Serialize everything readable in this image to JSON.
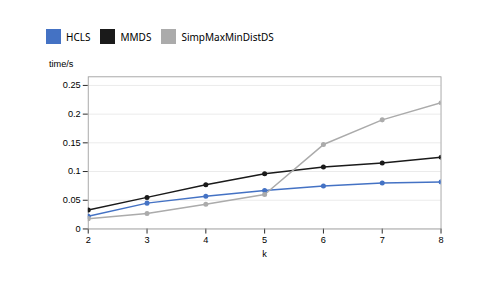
{
  "chart_data": {
    "type": "line",
    "x": [
      2,
      3,
      4,
      5,
      6,
      7,
      8
    ],
    "series": [
      {
        "name": "HCLS",
        "color": "#4472C4",
        "marker": "circle",
        "values": [
          0.022,
          0.045,
          0.057,
          0.067,
          0.075,
          0.08,
          0.082
        ]
      },
      {
        "name": "MMDS",
        "color": "#1a1a1a",
        "marker": "circle",
        "values": [
          0.033,
          0.055,
          0.077,
          0.096,
          0.108,
          0.115,
          0.125
        ]
      },
      {
        "name": "SimpMaxMinDistDS",
        "color": "#ABABAB",
        "marker": "circle",
        "values": [
          0.018,
          0.027,
          0.043,
          0.06,
          0.147,
          0.19,
          0.22
        ]
      }
    ],
    "xlabel": "k",
    "ylabel": "time/s",
    "xlim": [
      2,
      8
    ],
    "xticks": [
      2,
      3,
      4,
      5,
      6,
      7,
      8
    ],
    "ylim": [
      0,
      0.265
    ],
    "yticks": [
      0,
      0.05,
      0.1,
      0.15,
      0.2,
      0.25
    ],
    "grid": "y",
    "legend": "top"
  }
}
